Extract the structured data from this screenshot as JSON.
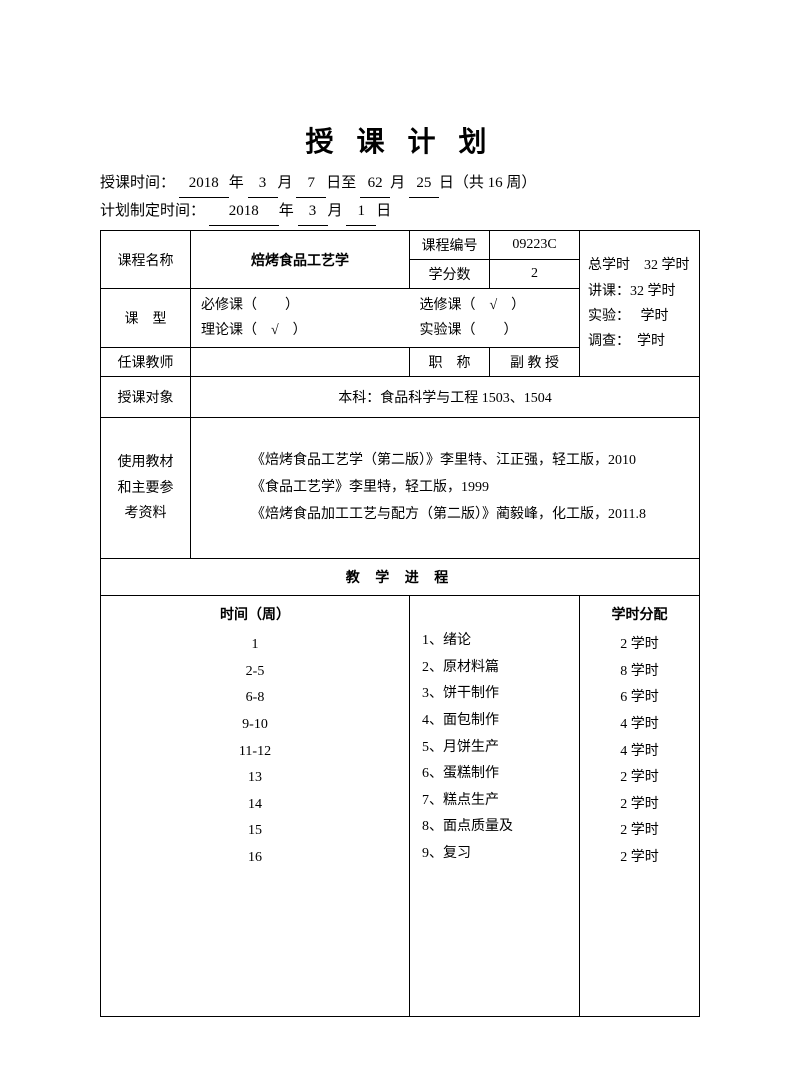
{
  "title": "授 课 计 划",
  "header": {
    "teach_time_label": "授课时间：",
    "year1": "2018",
    "month1": "3",
    "day1": "7",
    "month2": "62",
    "day2": "25",
    "weeks": "16",
    "plan_time_label": "计划制定时间：",
    "plan_year": "2018",
    "plan_month": "3",
    "plan_day": "1"
  },
  "info": {
    "course_name_label": "课程名称",
    "course_name": "焙烤食品工艺学",
    "course_code_label": "课程编号",
    "course_code": "09223C",
    "credit_label": "学分数",
    "credit": "2",
    "total_hours_label": "总学时",
    "total_hours": "32 学时",
    "lecture_label": "讲课：32 学时",
    "exp_label": "实验：　 学时",
    "survey_label": "调查：　学时",
    "course_type_label": "课　型",
    "required": "必修课（　　）",
    "theory": "理论课（　√　）",
    "elective": "选修课（　√　）",
    "lab": "实验课（　　）",
    "teacher_label": "任课教师",
    "title_label": "职　称",
    "title_value": "副 教 授",
    "audience_label": "授课对象",
    "audience": "本科：食品科学与工程 1503、1504",
    "materials_label1": "使用教材",
    "materials_label2": "和主要参",
    "materials_label3": "考资料",
    "ref1": "《焙烤食品工艺学（第二版）》李里特、江正强，轻工版，2010",
    "ref2": "《食品工艺学》李里特，轻工版，1999",
    "ref3": "《焙烤食品加工工艺与配方（第二版）》蔺毅峰，化工版，2011.8"
  },
  "progress": {
    "section_title": "教 学 进 程",
    "time_header": "时间（周）",
    "hours_header": "学时分配",
    "rows": [
      {
        "week": "1",
        "content": "1、绪论",
        "hours": "2 学时"
      },
      {
        "week": "2-5",
        "content": "2、原材料篇",
        "hours": "8 学时"
      },
      {
        "week": "6-8",
        "content": "3、饼干制作",
        "hours": "6 学时"
      },
      {
        "week": "9-10",
        "content": "4、面包制作",
        "hours": "4 学时"
      },
      {
        "week": "11-12",
        "content": "5、月饼生产",
        "hours": "4 学时"
      },
      {
        "week": "13",
        "content": "6、蛋糕制作",
        "hours": "2 学时"
      },
      {
        "week": "14",
        "content": "7、糕点生产",
        "hours": "2 学时"
      },
      {
        "week": "15",
        "content": "8、面点质量及",
        "hours": "2 学时"
      },
      {
        "week": "16",
        "content": "9、复习",
        "hours": "2 学时"
      }
    ]
  }
}
